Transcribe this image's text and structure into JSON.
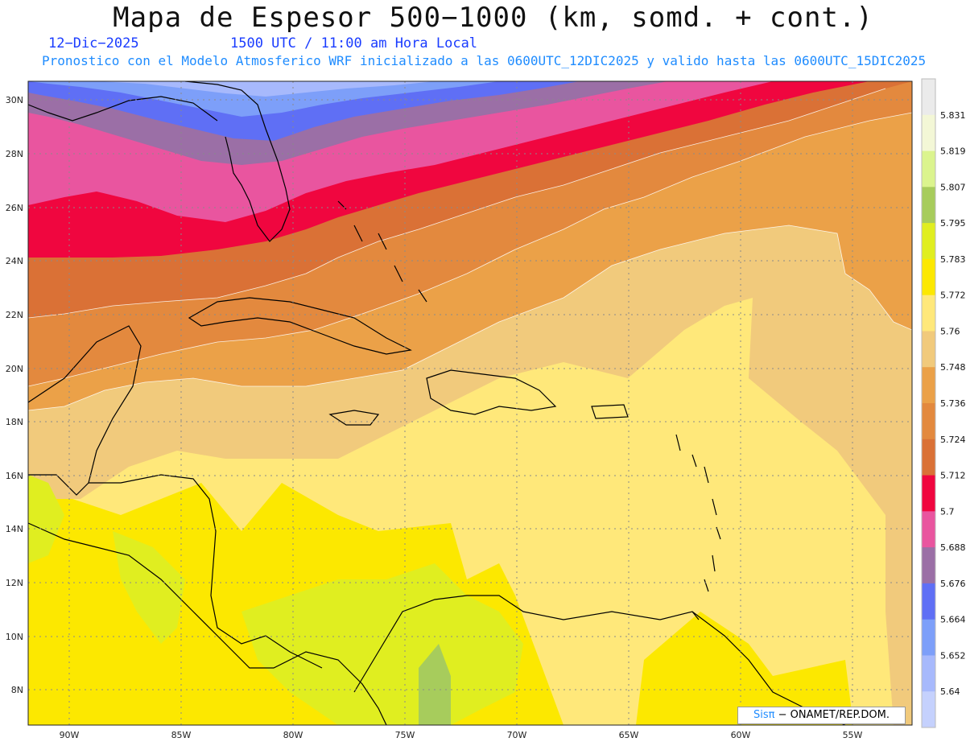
{
  "header": {
    "title": "Mapa de Espesor 500−1000 (km, somd. + cont.)",
    "date": "12−Dic−2025",
    "time": "1500 UTC / 11:00 am Hora Local",
    "model": "Pronostico con el Modelo Atmosferico WRF inicializado a las 0600UTC_12DIC2025 y valido hasta las  0600UTC_15DIC2025"
  },
  "map": {
    "lat_labels": [
      "30N",
      "28N",
      "26N",
      "24N",
      "22N",
      "20N",
      "18N",
      "16N",
      "14N",
      "12N",
      "10N",
      "8N"
    ],
    "lon_labels": [
      "90W",
      "85W",
      "80W",
      "75W",
      "70W",
      "65W",
      "60W",
      "55W"
    ]
  },
  "colorbar": {
    "levels": [
      "5.831",
      "5.819",
      "5.807",
      "5.795",
      "5.783",
      "5.772",
      "5.76",
      "5.748",
      "5.736",
      "5.724",
      "5.712",
      "5.7",
      "5.688",
      "5.676",
      "5.664",
      "5.652",
      "5.64"
    ],
    "colors": [
      "#ebebeb",
      "#f3f7d6",
      "#dbf48e",
      "#a7cc5c",
      "#e0ee20",
      "#fce800",
      "#ffe87a",
      "#f1ca7c",
      "#eba148",
      "#e3893e",
      "#da7136",
      "#f0063f",
      "#e9559f",
      "#9b6fa6",
      "#5f6ff5",
      "#7d9ff9",
      "#a7b9fc",
      "#c5d1fd"
    ]
  },
  "credit": {
    "logo": "Sisπ",
    "text": "− ONAMET/REP.DOM."
  }
}
